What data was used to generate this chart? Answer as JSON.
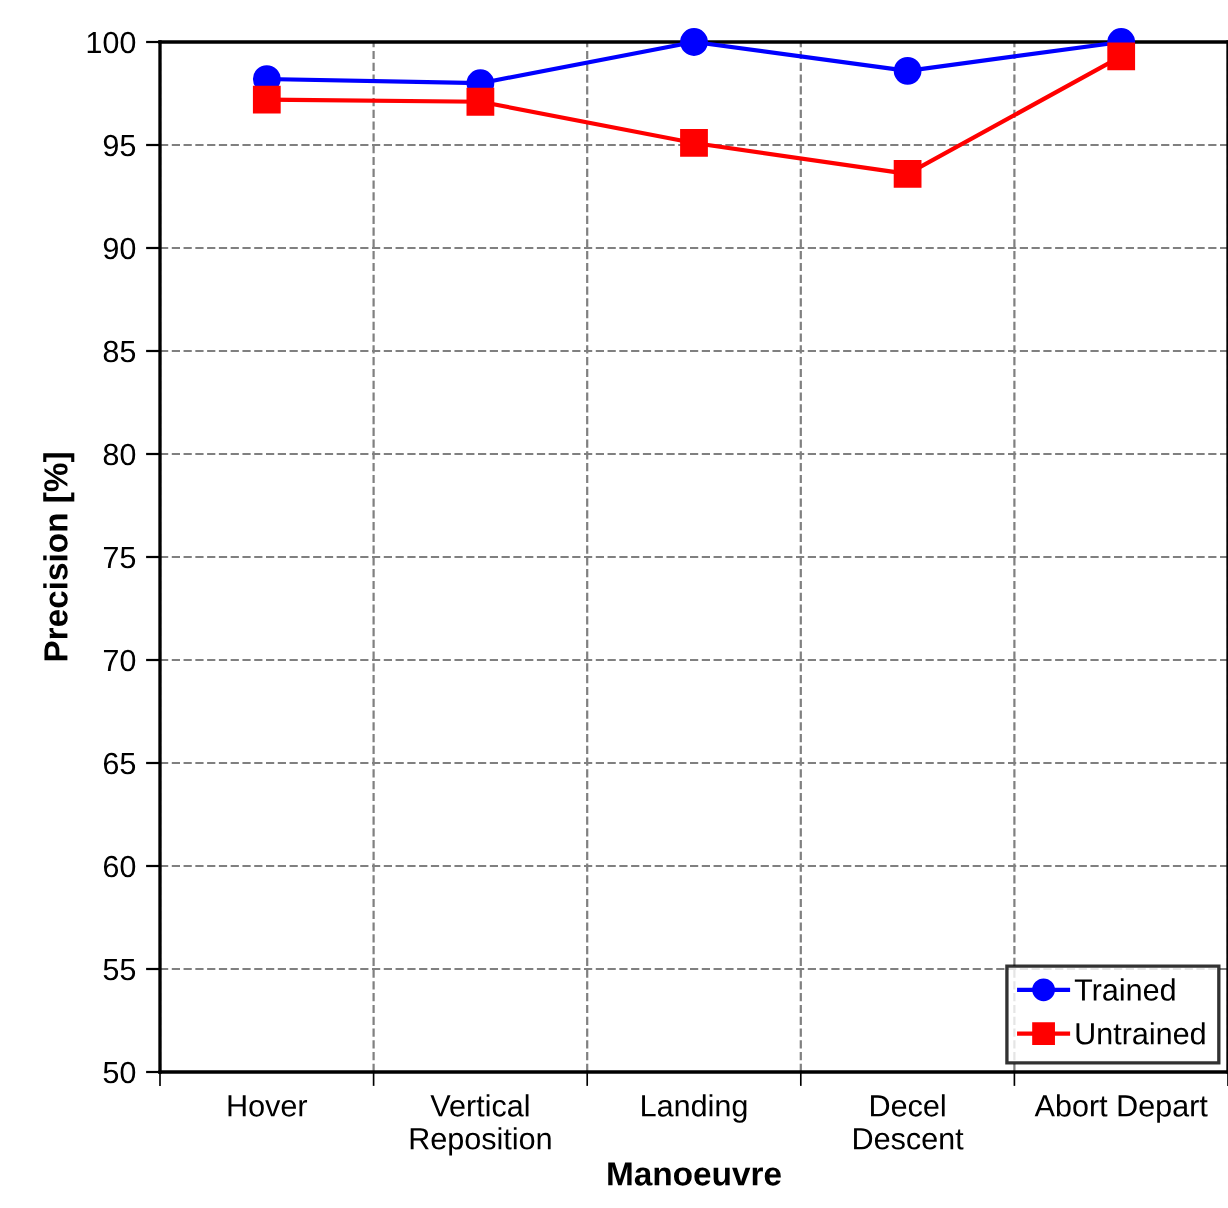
{
  "chart_data": {
    "type": "line",
    "xlabel": "Manoeuvre",
    "ylabel": "Precision [%]",
    "categories": [
      "Hover",
      "Vertical\nReposition",
      "Landing",
      "Decel\nDescent",
      "Abort Depart"
    ],
    "series": [
      {
        "name": "Trained",
        "color": "#0000ff",
        "marker": "circle",
        "values": [
          98.2,
          98.0,
          100,
          98.6,
          100
        ]
      },
      {
        "name": "Untrained",
        "color": "#ff0000",
        "marker": "square",
        "values": [
          97.2,
          97.1,
          95.1,
          93.6,
          99.3
        ]
      }
    ],
    "ylim": [
      50,
      100
    ],
    "yticks": [
      50,
      55,
      60,
      65,
      70,
      75,
      80,
      85,
      90,
      95,
      100
    ],
    "grid": true,
    "legend": "bottom right",
    "line_style": "solid"
  }
}
